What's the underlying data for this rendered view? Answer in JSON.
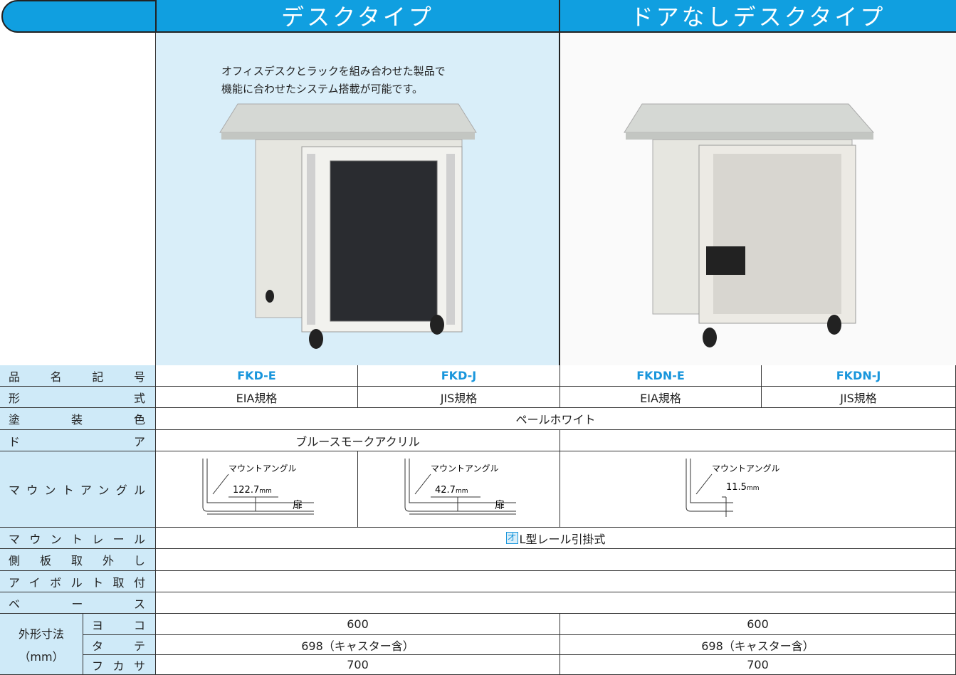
{
  "header": {
    "columns": [
      "デスクタイプ",
      "ドアなしデスクタイプ"
    ]
  },
  "description": [
    "オフィスデスクとラックを組み合わせた製品で",
    "機能に合わせたシステム搭載が可能です。"
  ],
  "specs": {
    "labels": [
      "品名記号",
      "形式",
      "塗装色",
      "ドア",
      "マウントアングル",
      "マウントレール",
      "側板取外し",
      "アイボルト取付",
      "ベース"
    ],
    "product_codes": [
      "FKD-E",
      "FKD-J",
      "FKDN-E",
      "FKDN-J"
    ],
    "format": [
      "EIA規格",
      "JIS規格",
      "EIA規格",
      "JIS規格"
    ],
    "paint_color": "ペールホワイト",
    "door": "ブルースモークアクリル",
    "mount_angle": {
      "label": "マウントアングル",
      "door_label": "扉",
      "items": [
        {
          "dim": "122.7",
          "unit": "mm"
        },
        {
          "dim": "42.7",
          "unit": "mm"
        },
        {
          "dim": "11.5",
          "unit": "mm"
        }
      ]
    },
    "mount_rail_icon": "オ",
    "mount_rail": "L型レール引掛式",
    "dimensions": {
      "label": "外形寸法",
      "unit": "（mm）",
      "rows": [
        {
          "label": "ヨコ",
          "values": [
            "600",
            "600"
          ]
        },
        {
          "label": "タテ",
          "values": [
            "698（キャスター含）",
            "698（キャスター含）"
          ]
        },
        {
          "label": "フカサ",
          "values": [
            "700",
            "700"
          ]
        }
      ]
    }
  }
}
